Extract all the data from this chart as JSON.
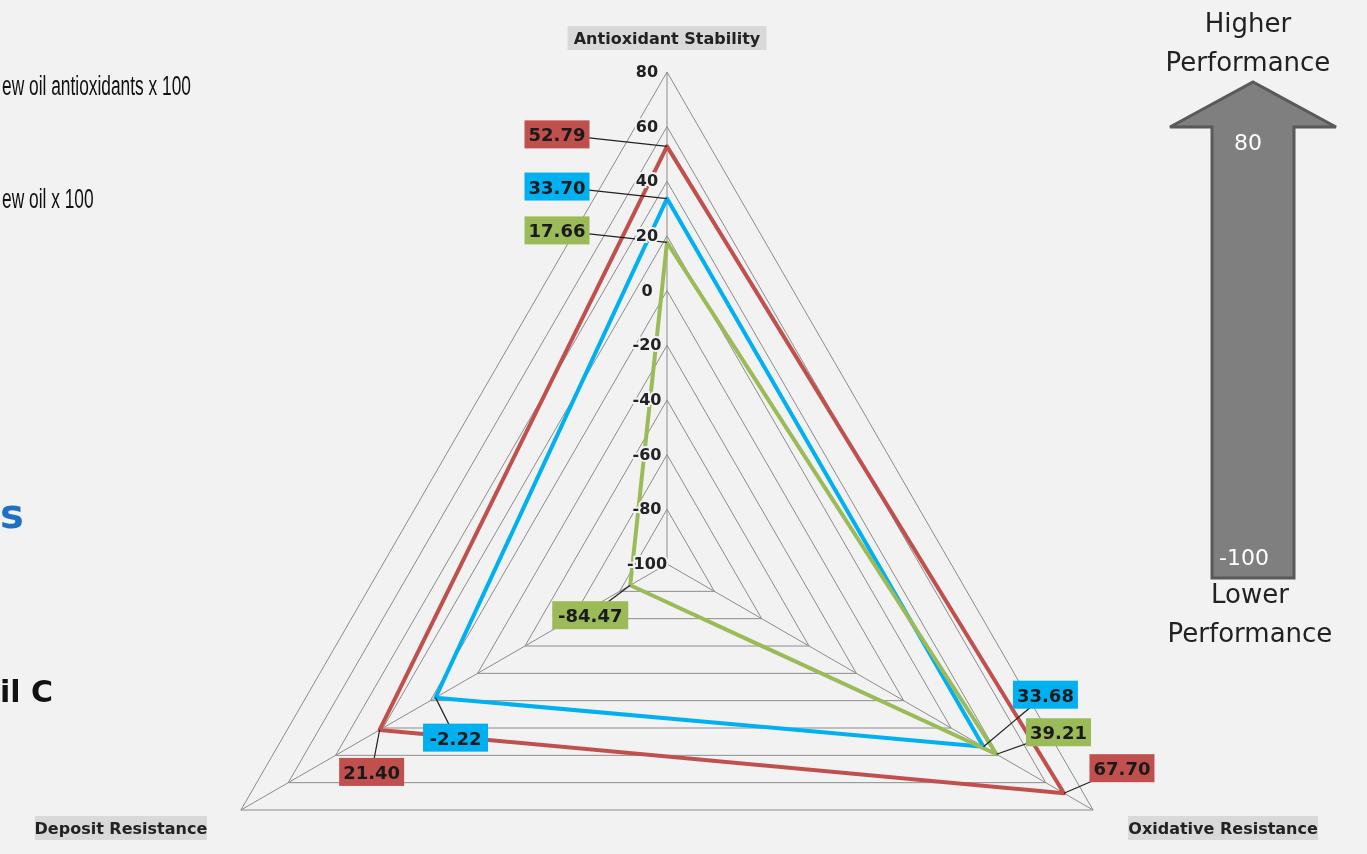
{
  "chart_data": {
    "type": "radar",
    "categories": [
      "Antioxidant Stability",
      "Oxidative Resistance",
      "Deposit Resistance"
    ],
    "series": [
      {
        "color": "#c0504d",
        "values": [
          52.79,
          67.7,
          21.4
        ],
        "value_labels": [
          "52.79",
          "67.70",
          "21.40"
        ]
      },
      {
        "color": "#00b0f0",
        "values": [
          33.7,
          33.68,
          -2.22
        ],
        "value_labels": [
          "33.70",
          "33.68",
          "-2.22"
        ]
      },
      {
        "color": "#9bbb59",
        "values": [
          17.66,
          39.21,
          -84.47
        ],
        "value_labels": [
          "17.66",
          "39.21",
          "-84.47"
        ]
      }
    ],
    "ylim": [
      -100,
      80
    ],
    "yticks": [
      -100,
      -80,
      -60,
      -40,
      -20,
      0,
      20,
      40,
      60,
      80
    ],
    "grid": true,
    "annotations": [
      "ew oil antioxidants x 100",
      "ew oil x 100",
      "s",
      "il C",
      "Higher Performance",
      "80",
      "-100",
      "Lower Performance"
    ]
  }
}
